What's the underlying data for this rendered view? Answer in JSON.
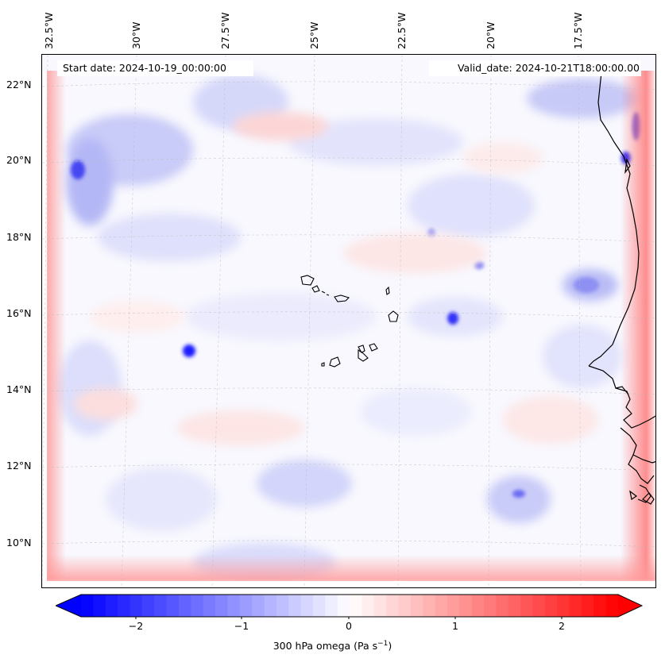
{
  "map": {
    "lon_labels": [
      "32.5°W",
      "30°W",
      "27.5°W",
      "25°W",
      "22.5°W",
      "20°W",
      "17.5°W"
    ],
    "lat_labels": [
      "22°N",
      "20°N",
      "18°N",
      "16°N",
      "14°N",
      "12°N",
      "10°N"
    ],
    "start_date_label": "Start date: 2024-10-19_00:00:00",
    "valid_date_label": "Valid_date: 2024-10-21T18:00:00.00"
  },
  "colorbar": {
    "label_main": "300 hPa omega (Pa s",
    "label_sup": "−1",
    "label_close": ")",
    "ticks": [
      "−2",
      "−1",
      "0",
      "1",
      "2"
    ],
    "min": -2.75,
    "max": 2.75,
    "negative_color": "#0000ff",
    "positive_color": "#ff0000",
    "extend": "both"
  }
}
